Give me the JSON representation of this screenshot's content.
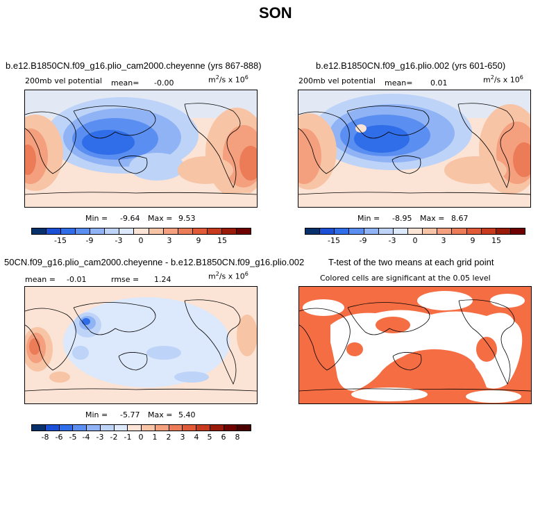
{
  "chart_data": [
    {
      "type": "heatmap",
      "title": "b.e12.B1850CN.f09_g16.plio_cam2000.cheyenne (yrs 867-888)",
      "left_label": "200mb vel potential",
      "stat_label": "mean=",
      "stat_value": "-0.00",
      "units": "m2/s x 10",
      "units_exp_a": "2",
      "units_exp_b": "6",
      "min_label": "Min =",
      "min": "-9.64",
      "max_label": "Max =",
      "max": "9.53",
      "colorbar_ticks": [
        "-15",
        "-9",
        "-3",
        "0",
        "3",
        "9",
        "15"
      ]
    },
    {
      "type": "heatmap",
      "title": "b.e12.B1850CN.f09_g16.plio.002 (yrs 601-650)",
      "left_label": "200mb vel potential",
      "stat_label": "mean=",
      "stat_value": "0.01",
      "units": "m2/s x 10",
      "units_exp_a": "2",
      "units_exp_b": "6",
      "min_label": "Min =",
      "min": "-8.95",
      "max_label": "Max =",
      "max": "8.67",
      "colorbar_ticks": [
        "-15",
        "-9",
        "-3",
        "0",
        "3",
        "9",
        "15"
      ]
    },
    {
      "type": "heatmap",
      "title": "50CN.f09_g16.plio_cam2000.cheyenne - b.e12.B1850CN.f09_g16.plio.002",
      "mean_label": "mean =",
      "mean_value": "-0.01",
      "rmse_label": "rmse =",
      "rmse_value": "1.24",
      "units": "m2/s x 10",
      "units_exp_a": "2",
      "units_exp_b": "6",
      "min_label": "Min =",
      "min": "-5.77",
      "max_label": "Max =",
      "max": "5.40",
      "colorbar_ticks": [
        "-8",
        "-6",
        "-5",
        "-4",
        "-3",
        "-2",
        "-1",
        "0",
        "1",
        "2",
        "3",
        "4",
        "5",
        "6",
        "8"
      ]
    },
    {
      "type": "heatmap",
      "title": "T-test of the two means at each grid point",
      "subtitle": "Colored cells are significant at the 0.05 level",
      "significant_color": "#f46d43"
    }
  ],
  "page": {
    "title": "SON"
  },
  "colors": {
    "palette": [
      "#08306b",
      "#1a4fd6",
      "#2f6ee8",
      "#5a8ef0",
      "#8fb3f5",
      "#bdd3f8",
      "#dce8fb",
      "#fbe4d5",
      "#f8c4a6",
      "#f4a07e",
      "#ec7b57",
      "#e05a37",
      "#c83a1d",
      "#9a1a0a",
      "#6e0000"
    ],
    "diff_palette": [
      "#08306b",
      "#1a4fd6",
      "#2f6ee8",
      "#5a8ef0",
      "#8fb3f5",
      "#bdd3f8",
      "#dce8fb",
      "#fbe4d5",
      "#f8c4a6",
      "#f4a07e",
      "#ec7b57",
      "#e05a37",
      "#c83a1d",
      "#9a1a0a",
      "#6e0000",
      "#4b0000"
    ]
  }
}
